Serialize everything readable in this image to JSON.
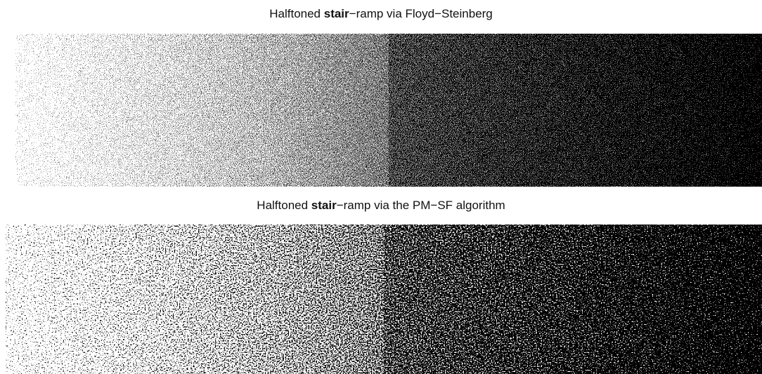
{
  "panels": [
    {
      "title": {
        "before": "Halftoned ",
        "bold": "stair",
        "after": "−ramp via Floyd−Steinberg"
      }
    },
    {
      "title": {
        "before": "Halftoned ",
        "bold": "stair",
        "after": "−ramp via the PM−SF algorithm"
      }
    }
  ]
}
